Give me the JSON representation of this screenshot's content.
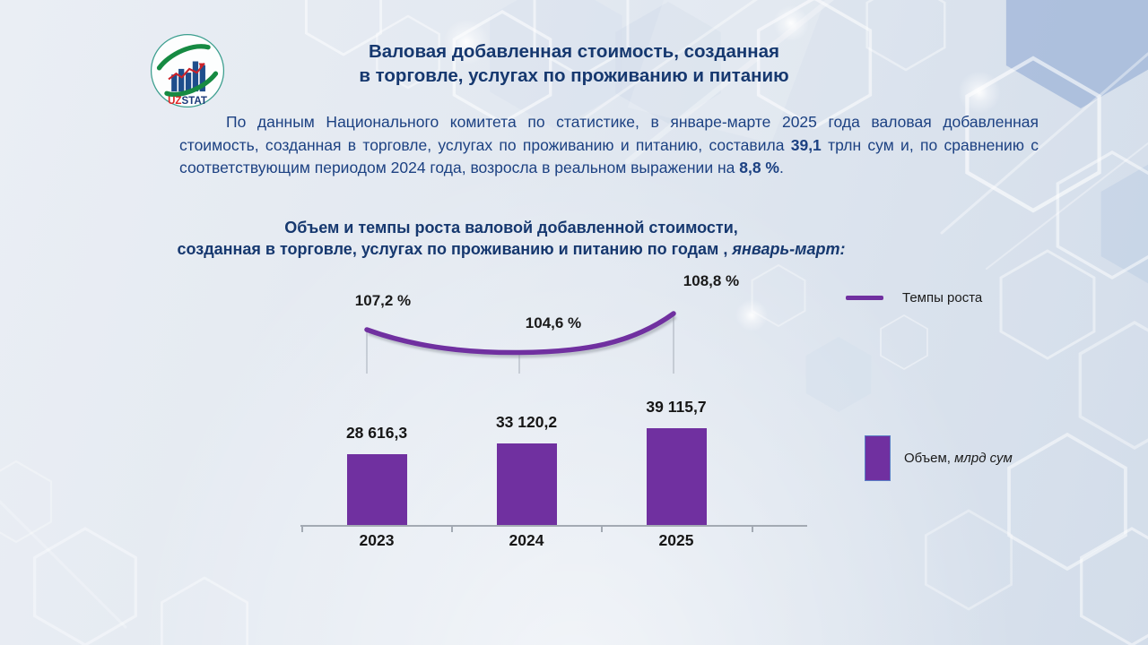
{
  "slide": {
    "title_line1": "Валовая добавленная стоимость, созданная",
    "title_line2": "в торговле, услугах по проживанию и питанию",
    "paragraph": {
      "part1": "По данным Национального комитета по статистике, в январе-марте 2025 года валовая добавленная стоимость, созданная в торговле, услугах по проживанию и питанию, составила ",
      "bold1": "39,1",
      "part2": " трлн сум и, по сравнению с соответствующим периодом 2024 года, возросла в реальном выражении на ",
      "bold2": "8,8 %",
      "part3": "."
    },
    "chart_title_line1": "Объем и темпы роста валовой добавленной стоимости,",
    "chart_title_line2": "созданная в торговле, услугах по проживанию и питанию по годам , ",
    "chart_title_italic": "январь-март:"
  },
  "logo": {
    "uz": "UZ",
    "stat": "STAT"
  },
  "legend": {
    "line_label": "Темпы роста",
    "bar_label_regular": "Объем, ",
    "bar_label_italic": "млрд сум"
  },
  "chart_data": {
    "type": "combo",
    "title": "Объем и темпы роста валовой добавленной стоимости, созданная в торговле, услугах по проживанию и питанию по годам , январь-март:",
    "categories": [
      "2023",
      "2024",
      "2025"
    ],
    "series": [
      {
        "name": "Объем, млрд сум",
        "type": "bar",
        "values": [
          28616.3,
          33120.2,
          39115.7
        ],
        "labels": [
          "28 616,3",
          "33 120,2",
          "39 115,7"
        ],
        "color": "#7030a0"
      },
      {
        "name": "Темпы роста",
        "type": "line",
        "values": [
          107.2,
          104.6,
          108.8
        ],
        "labels": [
          "107,2 %",
          "104,6 %",
          "108,8 %"
        ],
        "color": "#7030a0"
      }
    ],
    "legend_position": "right",
    "grid": false,
    "xlabel": "",
    "ylabel": ""
  },
  "colors": {
    "accent_purple": "#7030a0",
    "title_navy": "#16386f",
    "paragraph_navy": "#1c4182",
    "axis_gray": "#a3aab3"
  }
}
